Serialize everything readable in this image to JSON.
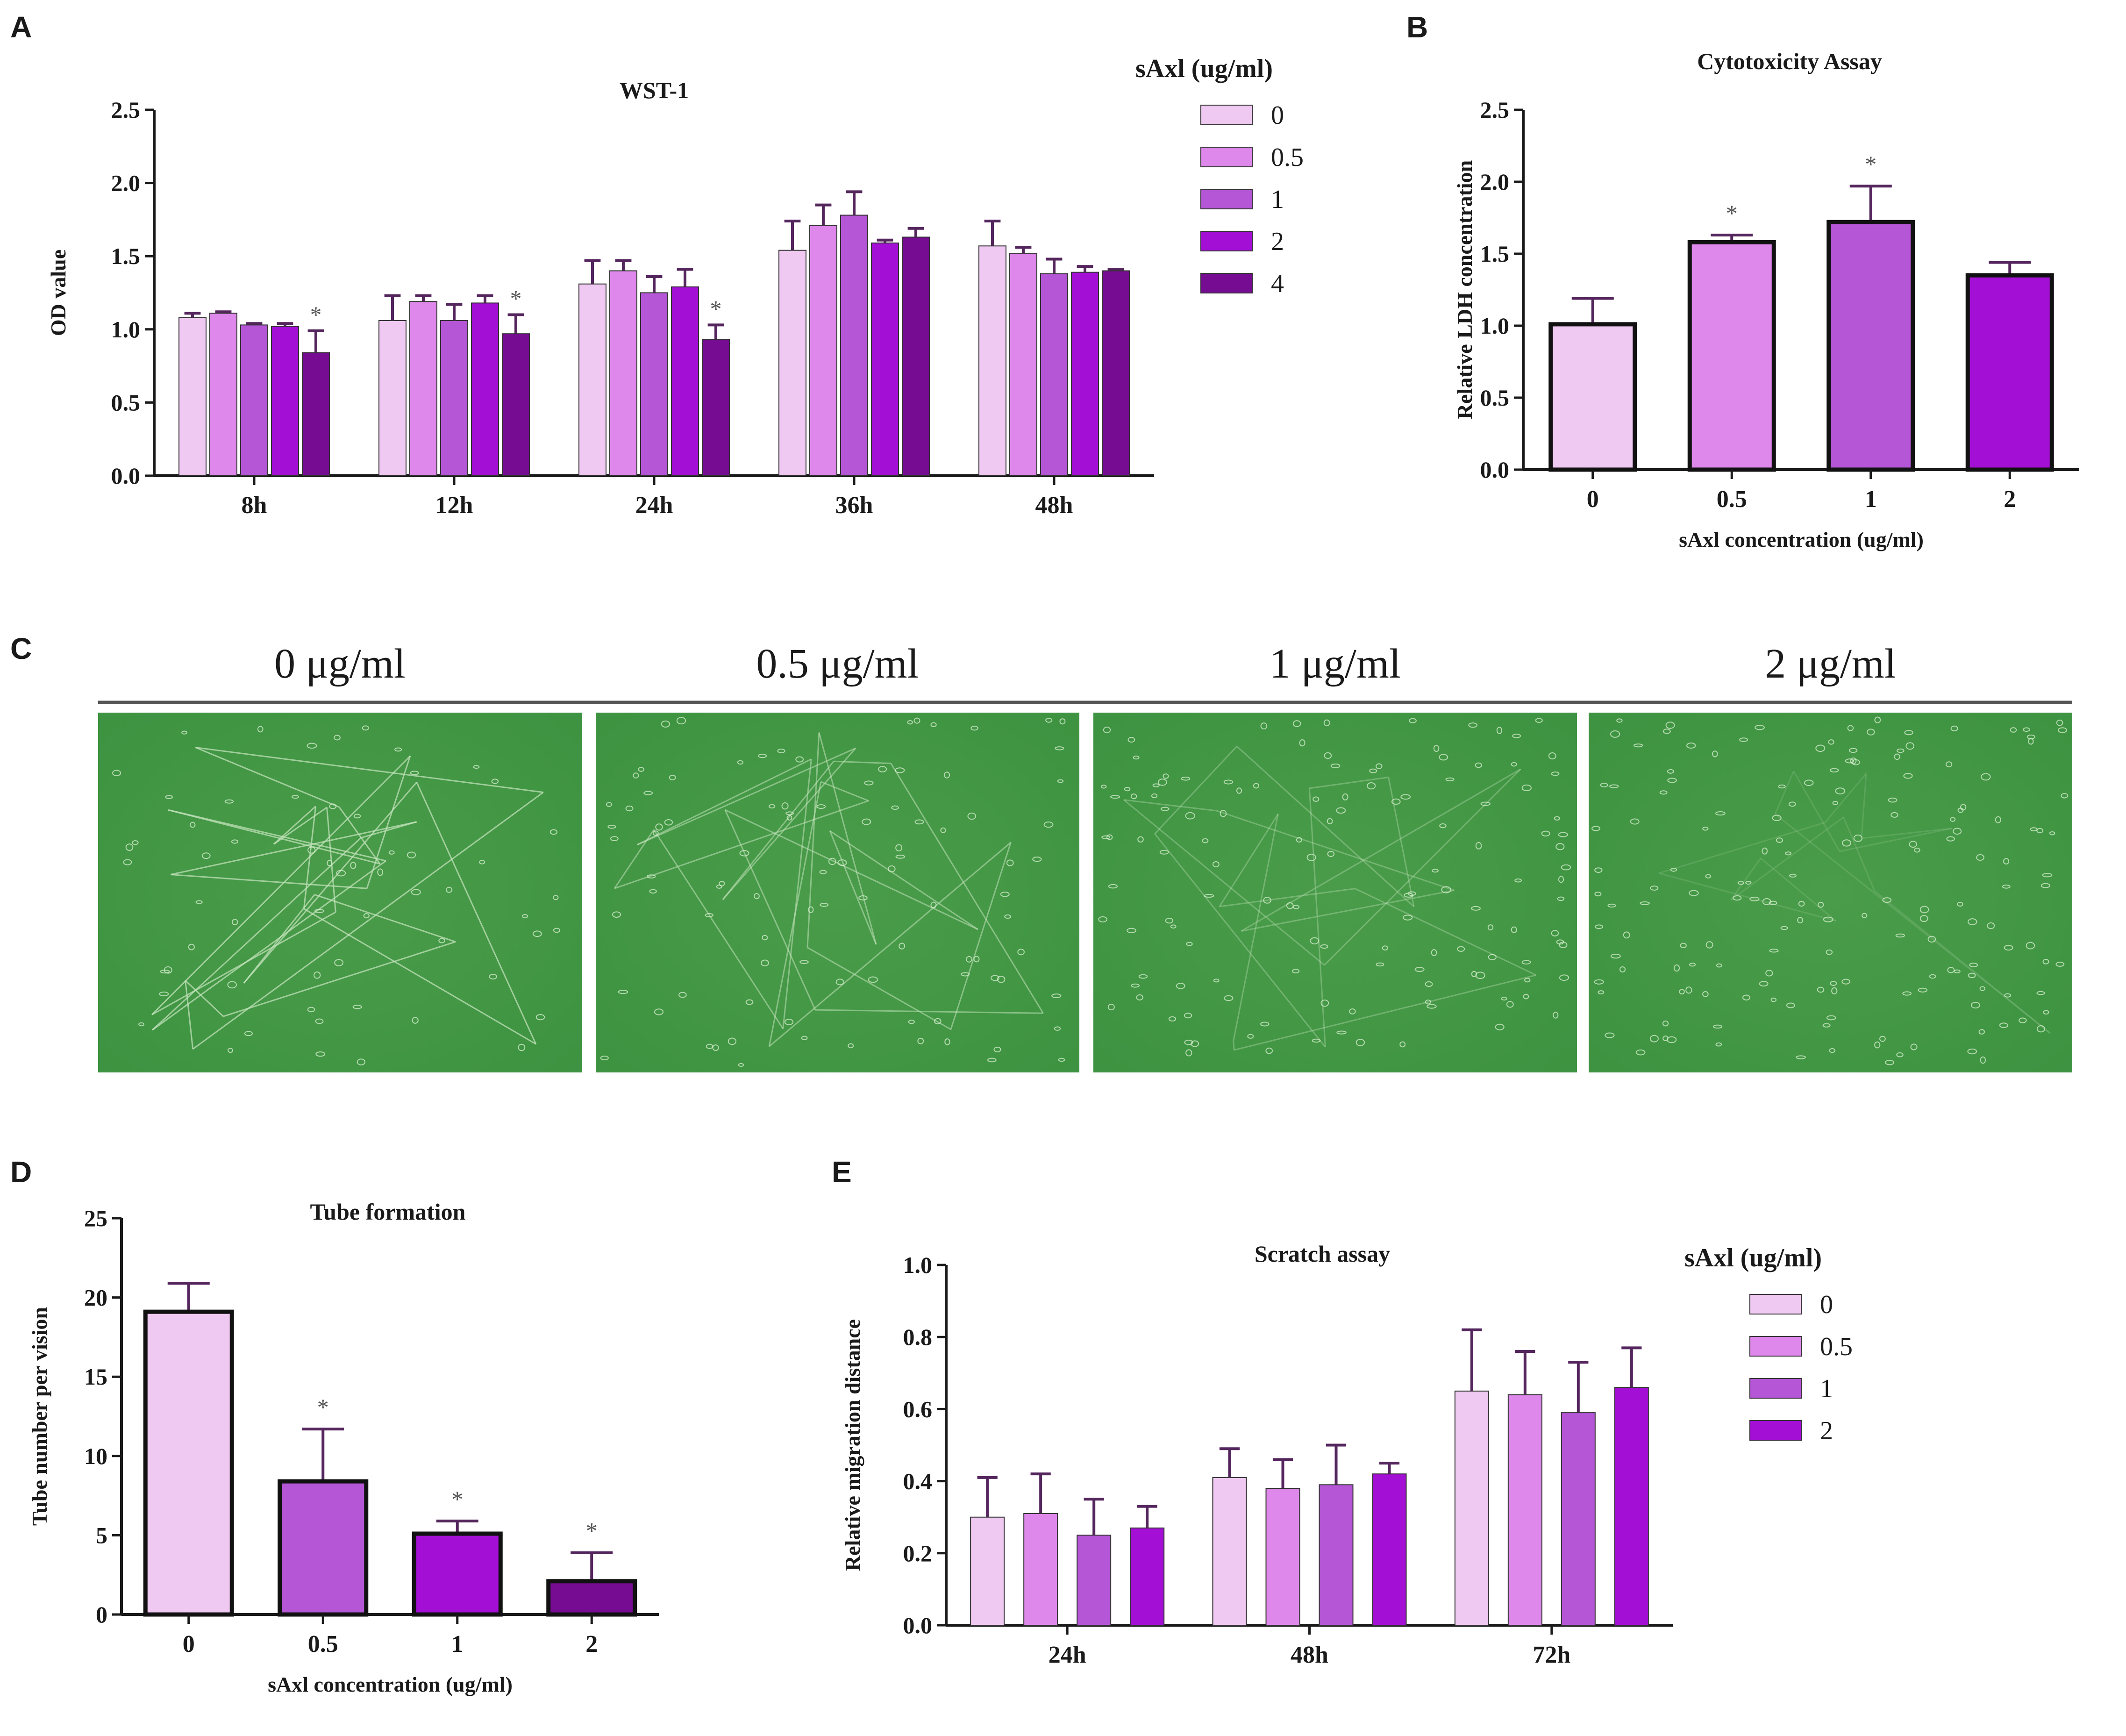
{
  "figure": {
    "panel_letters": [
      "A",
      "B",
      "C",
      "D",
      "E"
    ],
    "colors": {
      "0": "#efc9f2",
      "0.5": "#dd88ea",
      "1": "#b556d6",
      "2": "#a40fd6",
      "4": "#760c91",
      "axis": "#1a1a1a",
      "error_bar": "#55265e",
      "significance": "#555555",
      "micrograph": "#3c9240"
    }
  },
  "chart_data": [
    {
      "panel": "A",
      "type": "bar",
      "title": "WST-1",
      "ylabel": "OD value",
      "xlabel": "",
      "ylim": [
        0,
        2.5
      ],
      "yticks": [
        "0.0",
        "0.5",
        "1.0",
        "1.5",
        "2.0",
        "2.5"
      ],
      "categories": [
        "8h",
        "12h",
        "24h",
        "36h",
        "48h"
      ],
      "legend_title": "sAxl (ug/ml)",
      "legend_position": "top-right",
      "significance_mark": "*",
      "series": [
        {
          "name": "0",
          "values": [
            1.08,
            1.06,
            1.31,
            1.54,
            1.57
          ],
          "errors": [
            0.03,
            0.17,
            0.16,
            0.2,
            0.17
          ],
          "significant": [
            false,
            false,
            false,
            false,
            false
          ]
        },
        {
          "name": "0.5",
          "values": [
            1.11,
            1.19,
            1.4,
            1.71,
            1.52
          ],
          "errors": [
            0.01,
            0.04,
            0.07,
            0.14,
            0.04
          ],
          "significant": [
            false,
            false,
            false,
            false,
            false
          ]
        },
        {
          "name": "1",
          "values": [
            1.03,
            1.06,
            1.25,
            1.78,
            1.38
          ],
          "errors": [
            0.01,
            0.11,
            0.11,
            0.16,
            0.1
          ],
          "significant": [
            false,
            false,
            false,
            false,
            false
          ]
        },
        {
          "name": "2",
          "values": [
            1.02,
            1.18,
            1.29,
            1.59,
            1.39
          ],
          "errors": [
            0.02,
            0.05,
            0.12,
            0.02,
            0.04
          ],
          "significant": [
            false,
            false,
            false,
            false,
            false
          ]
        },
        {
          "name": "4",
          "values": [
            0.84,
            0.97,
            0.93,
            1.63,
            1.4
          ],
          "errors": [
            0.15,
            0.13,
            0.1,
            0.06,
            0.01
          ],
          "significant": [
            true,
            true,
            true,
            false,
            false
          ]
        }
      ]
    },
    {
      "panel": "B",
      "type": "bar",
      "title": "Cytotoxicity Assay",
      "ylabel": "Relative LDH concentration",
      "xlabel": "sAxl concentration (ug/ml)",
      "ylim": [
        0,
        2.5
      ],
      "yticks": [
        "0.0",
        "0.5",
        "1.0",
        "1.5",
        "2.0",
        "2.5"
      ],
      "categories": [
        "0",
        "0.5",
        "1",
        "2"
      ],
      "values": [
        1.01,
        1.58,
        1.72,
        1.35
      ],
      "errors": [
        0.18,
        0.05,
        0.25,
        0.09
      ],
      "significant": [
        false,
        true,
        true,
        false
      ],
      "significance_mark": "*"
    },
    {
      "panel": "D",
      "type": "bar",
      "title": "Tube formation",
      "ylabel": "Tube number per vision",
      "xlabel": "sAxl concentration (ug/ml)",
      "ylim": [
        0,
        25
      ],
      "yticks": [
        "0",
        "5",
        "10",
        "15",
        "20",
        "25"
      ],
      "categories": [
        "0",
        "0.5",
        "1",
        "2"
      ],
      "values": [
        19.1,
        8.4,
        5.1,
        2.1
      ],
      "errors": [
        1.8,
        3.3,
        0.8,
        1.8
      ],
      "significant": [
        false,
        true,
        true,
        true
      ],
      "significance_mark": "*"
    },
    {
      "panel": "E",
      "type": "bar",
      "title": "Scratch assay",
      "ylabel": "Relative migration distance",
      "xlabel": "",
      "ylim": [
        0,
        1.0
      ],
      "yticks": [
        "0.0",
        "0.2",
        "0.4",
        "0.6",
        "0.8",
        "1.0"
      ],
      "categories": [
        "24h",
        "48h",
        "72h"
      ],
      "legend_title": "sAxl (ug/ml)",
      "legend_position": "top-right",
      "series": [
        {
          "name": "0",
          "values": [
            0.3,
            0.41,
            0.65
          ],
          "errors": [
            0.11,
            0.08,
            0.17
          ]
        },
        {
          "name": "0.5",
          "values": [
            0.31,
            0.38,
            0.64
          ],
          "errors": [
            0.11,
            0.08,
            0.12
          ]
        },
        {
          "name": "1",
          "values": [
            0.25,
            0.39,
            0.59
          ],
          "errors": [
            0.1,
            0.11,
            0.14
          ]
        },
        {
          "name": "2",
          "values": [
            0.27,
            0.42,
            0.66
          ],
          "errors": [
            0.06,
            0.03,
            0.11
          ]
        }
      ]
    }
  ],
  "panel_c": {
    "labels": [
      "0 μg/ml",
      "0.5 μg/ml",
      "1 μg/ml",
      "2 μg/ml"
    ],
    "image_description": "green phase-contrast micrographs of tube formation"
  }
}
